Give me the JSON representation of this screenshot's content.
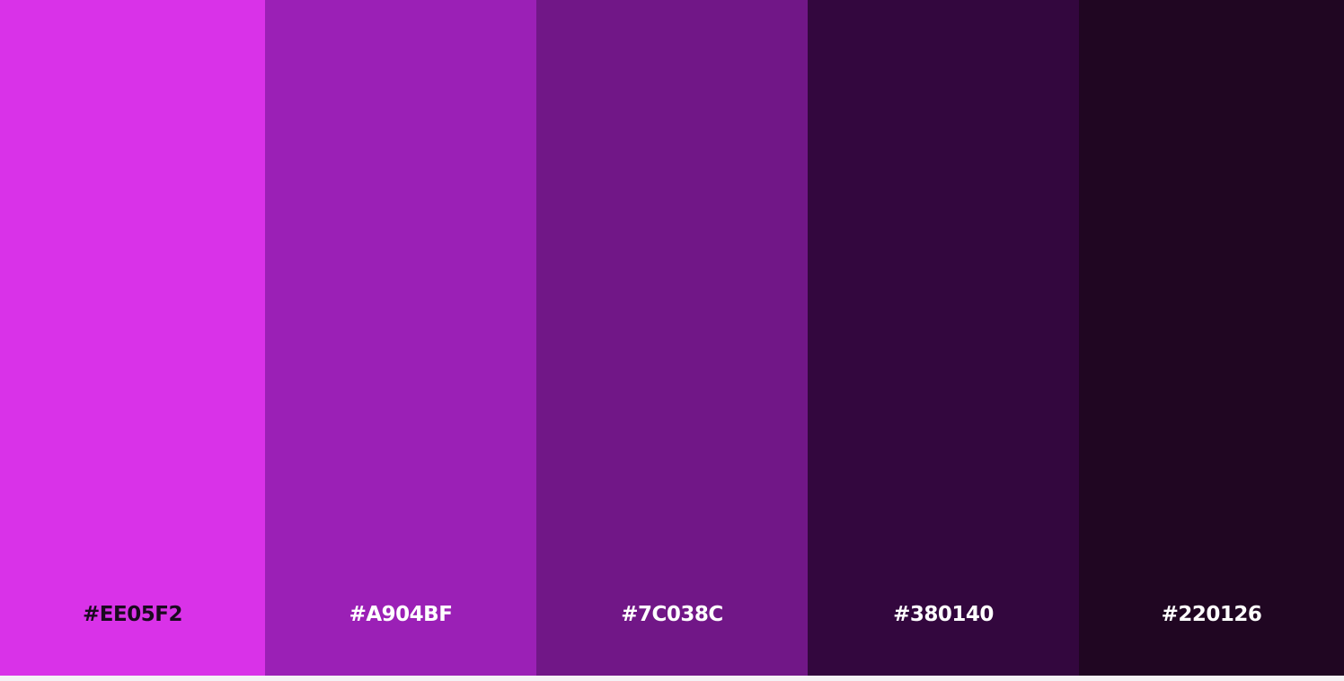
{
  "palette": {
    "swatches": [
      {
        "hex_label": "#EE05F2",
        "color": "#D932E8",
        "text_color": "#1a0a1f"
      },
      {
        "hex_label": "#A904BF",
        "color": "#9B20B6",
        "text_color": "#ffffff"
      },
      {
        "hex_label": "#7C038C",
        "color": "#711787",
        "text_color": "#ffffff"
      },
      {
        "hex_label": "#380140",
        "color": "#33073E",
        "text_color": "#ffffff"
      },
      {
        "hex_label": "#220126",
        "color": "#200622",
        "text_color": "#ffffff"
      }
    ]
  }
}
